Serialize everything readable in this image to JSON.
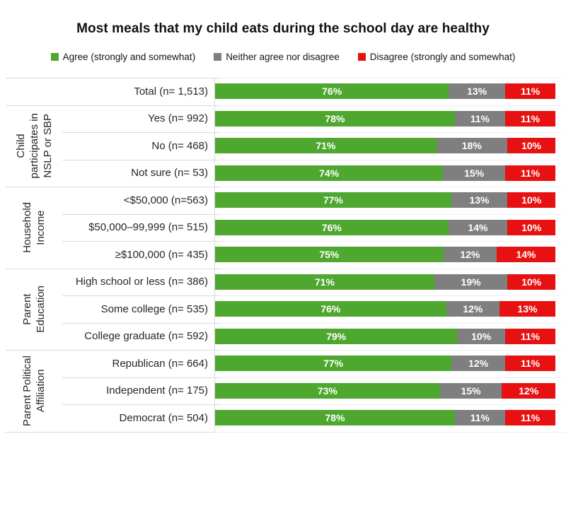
{
  "title": "Most meals that my child eats during the school day are healthy",
  "legend": [
    {
      "label": "Agree (strongly and somewhat)",
      "color": "#4EA72E"
    },
    {
      "label": "Neither agree nor disagree",
      "color": "#7F7F7F"
    },
    {
      "label": "Disagree (strongly and somewhat)",
      "color": "#E81111"
    }
  ],
  "chart_data": {
    "type": "bar",
    "stacked": true,
    "orientation": "horizontal",
    "unit": "percent",
    "xlim": [
      0,
      100
    ],
    "value_axis_visible": false,
    "gridlines": "faint horizontal row separators",
    "legend_position": "top-center",
    "title": "Most meals that my child eats during the school day are healthy",
    "series_names": [
      "Agree (strongly and somewhat)",
      "Neither agree nor disagree",
      "Disagree (strongly and somewhat)"
    ],
    "series_colors": [
      "#4EA72E",
      "#7F7F7F",
      "#E81111"
    ],
    "groups": [
      {
        "group": "",
        "rows": [
          {
            "label": "Total (n= 1,513)",
            "values": [
              76,
              13,
              11
            ],
            "labels": [
              "76%",
              "13%",
              "11%"
            ]
          }
        ]
      },
      {
        "group": "Child\nparticipates in\nNSLP or SBP",
        "rows": [
          {
            "label": "Yes (n= 992)",
            "values": [
              78,
              11,
              11
            ],
            "labels": [
              "78%",
              "11%",
              "11%"
            ]
          },
          {
            "label": "No (n= 468)",
            "values": [
              71,
              18,
              10
            ],
            "labels": [
              "71%",
              "18%",
              "10%"
            ]
          },
          {
            "label": "Not sure (n= 53)",
            "values": [
              74,
              15,
              11
            ],
            "labels": [
              "74%",
              "15%",
              "11%"
            ]
          }
        ]
      },
      {
        "group": "Household\nIncome",
        "rows": [
          {
            "label": "<$50,000 (n=563)",
            "values": [
              77,
              13,
              10
            ],
            "labels": [
              "77%",
              "13%",
              "10%"
            ]
          },
          {
            "label": "$50,000–99,999 (n= 515)",
            "values": [
              76,
              14,
              10
            ],
            "labels": [
              "76%",
              "14%",
              "10%"
            ]
          },
          {
            "label": "≥$100,000 (n= 435)",
            "values": [
              75,
              12,
              14
            ],
            "labels": [
              "75%",
              "12%",
              "14%"
            ]
          }
        ]
      },
      {
        "group": "Parent\nEducation",
        "rows": [
          {
            "label": "High school or less (n= 386)",
            "values": [
              71,
              19,
              10
            ],
            "labels": [
              "71%",
              "19%",
              "10%"
            ]
          },
          {
            "label": "Some college (n= 535)",
            "values": [
              76,
              12,
              13
            ],
            "labels": [
              "76%",
              "12%",
              "13%"
            ]
          },
          {
            "label": "College graduate (n= 592)",
            "values": [
              79,
              10,
              11
            ],
            "labels": [
              "79%",
              "10%",
              "11%"
            ]
          }
        ]
      },
      {
        "group": "Parent Political\nAffiliation",
        "rows": [
          {
            "label": "Republican (n= 664)",
            "values": [
              77,
              12,
              11
            ],
            "labels": [
              "77%",
              "12%",
              "11%"
            ]
          },
          {
            "label": "Independent (n= 175)",
            "values": [
              73,
              15,
              12
            ],
            "labels": [
              "73%",
              "15%",
              "12%"
            ]
          },
          {
            "label": "Democrat (n= 504)",
            "values": [
              78,
              11,
              11
            ],
            "labels": [
              "78%",
              "11%",
              "11%"
            ]
          }
        ]
      }
    ]
  }
}
